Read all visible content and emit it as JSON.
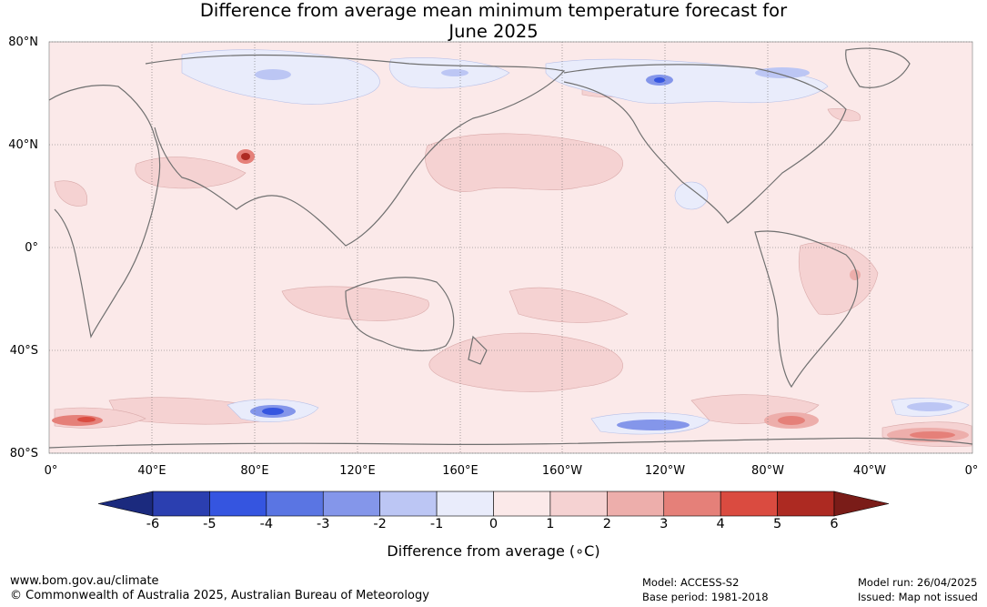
{
  "title_line1": "Difference from average mean minimum temperature forecast for",
  "title_line2": "June 2025",
  "lat_labels": [
    "80°N",
    "40°N",
    "0°",
    "40°S",
    "80°S"
  ],
  "lon_labels": [
    "0°",
    "40°E",
    "80°E",
    "120°E",
    "160°E",
    "160°W",
    "120°W",
    "80°W",
    "40°W",
    "0°"
  ],
  "colorbar": {
    "ticks": [
      "-6",
      "-5",
      "-4",
      "-3",
      "-2",
      "-1",
      "0",
      "1",
      "2",
      "3",
      "4",
      "5",
      "6"
    ],
    "colors": [
      "#1b2a7e",
      "#2b3fb0",
      "#3555e0",
      "#5a75e3",
      "#8496ea",
      "#bcc6f4",
      "#e9ecfb",
      "#fbe9e9",
      "#f5d2d2",
      "#edaeab",
      "#e58079",
      "#da4b40",
      "#ad2a22",
      "#7a1c18"
    ],
    "label": "Difference from average (∘C)"
  },
  "footer": {
    "url": "www.bom.gov.au/climate",
    "copyright": "© Commonwealth of Australia 2025, Australian Bureau of Meteorology",
    "model": "Model: ACCESS-S2",
    "base_period": "Base period: 1981-2018",
    "model_run": "Model run: 26/04/2025",
    "issued": "Issued: Map not issued"
  }
}
